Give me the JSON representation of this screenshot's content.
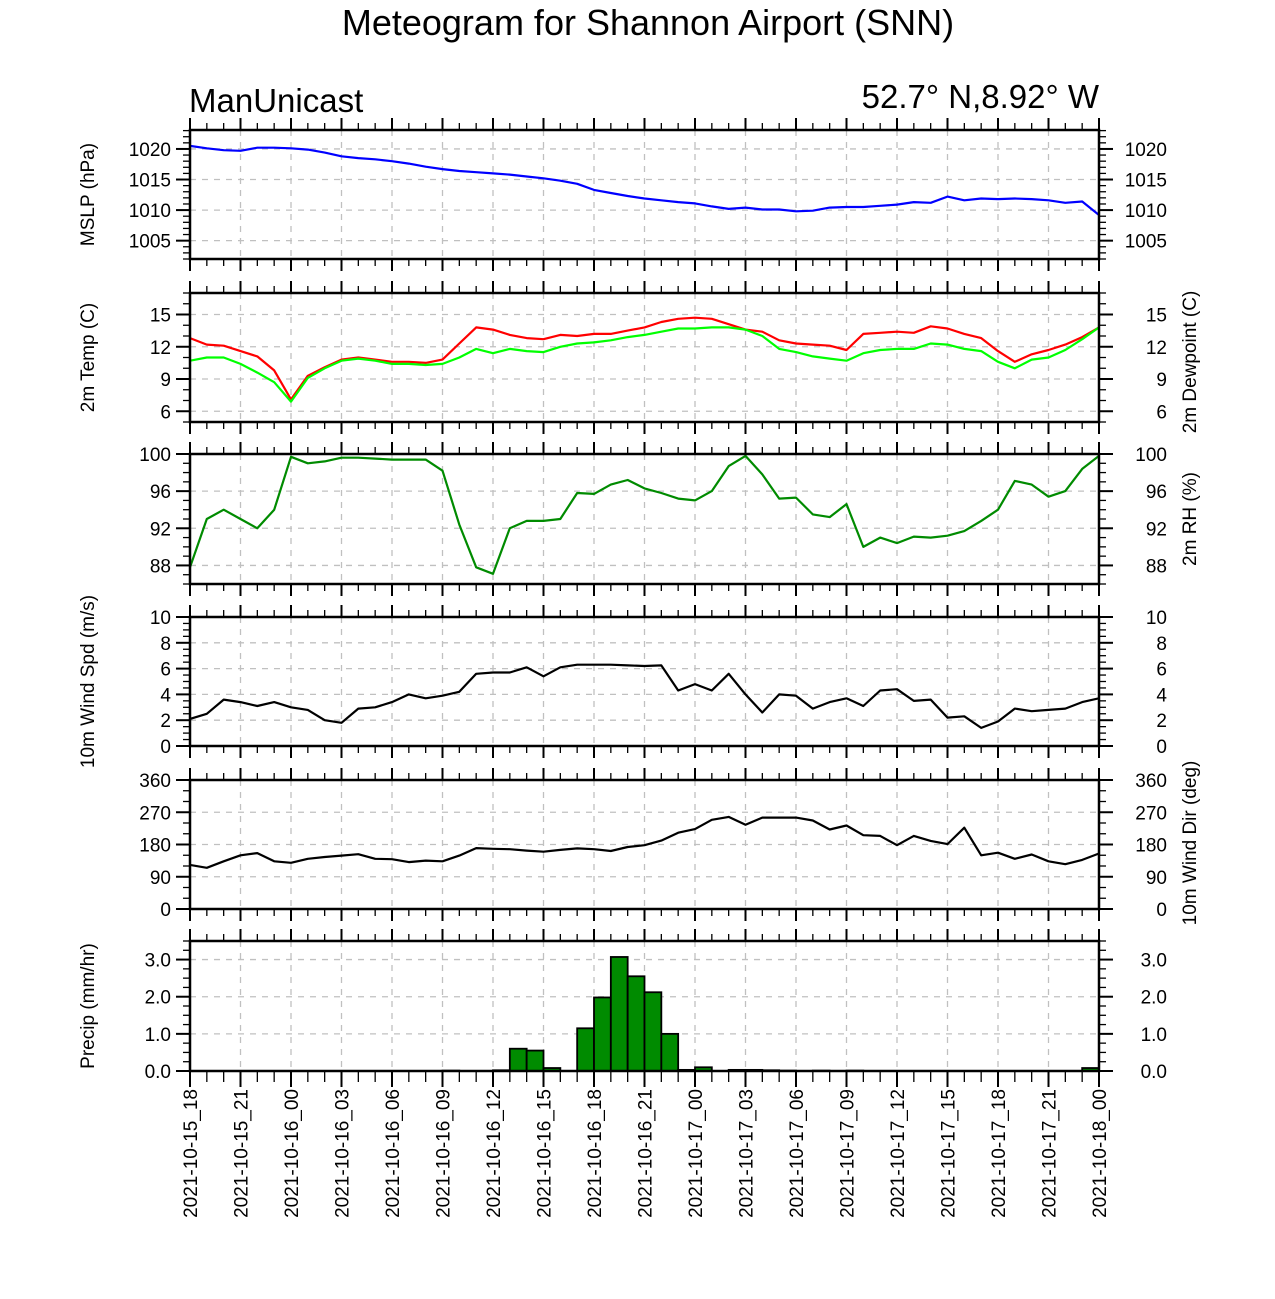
{
  "title": "Meteogram for Shannon Airport (SNN)",
  "left_subtitle": "ManUnicast",
  "right_subtitle": "52.7° N,8.92° W",
  "chart_data": {
    "x_hours_start": "2021-10-15_18",
    "x_step_hours": 1,
    "x_tick_labels": [
      "2021-10-15_18",
      "2021-10-15_21",
      "2021-10-16_00",
      "2021-10-16_03",
      "2021-10-16_06",
      "2021-10-16_09",
      "2021-10-16_12",
      "2021-10-16_15",
      "2021-10-16_18",
      "2021-10-16_21",
      "2021-10-17_00",
      "2021-10-17_03",
      "2021-10-17_06",
      "2021-10-17_09",
      "2021-10-17_12",
      "2021-10-17_15",
      "2021-10-17_18",
      "2021-10-17_21",
      "2021-10-18_00"
    ],
    "panels": [
      {
        "id": "mslp",
        "type": "line",
        "ylabel_left": "MSLP (hPa)",
        "ylabel_right": "",
        "ylim": [
          1002,
          1023.1
        ],
        "yticks": [
          1005,
          1010,
          1015,
          1020
        ],
        "ytick_labels": [
          "1005",
          "1010",
          "1015",
          "1020"
        ],
        "minor_step": 1,
        "right_tick_labels": true,
        "series": [
          {
            "name": "MSLP",
            "color": "#0000ff",
            "values": [
              1020.5,
              1020.1,
              1019.8,
              1019.7,
              1020.2,
              1020.2,
              1020.1,
              1019.9,
              1019.4,
              1018.8,
              1018.5,
              1018.3,
              1018.0,
              1017.6,
              1017.1,
              1016.7,
              1016.4,
              1016.2,
              1016.0,
              1015.8,
              1015.5,
              1015.2,
              1014.8,
              1014.3,
              1013.3,
              1012.8,
              1012.3,
              1011.9,
              1011.6,
              1011.3,
              1011.1,
              1010.6,
              1010.2,
              1010.4,
              1010.1,
              1010.1,
              1009.8,
              1009.9,
              1010.4,
              1010.5,
              1010.5,
              1010.7,
              1010.9,
              1011.3,
              1011.2,
              1012.2,
              1011.6,
              1011.9,
              1011.8,
              1011.9,
              1011.8,
              1011.6,
              1011.2,
              1011.4,
              1009.2
            ]
          }
        ]
      },
      {
        "id": "temp",
        "type": "line",
        "ylabel_left": "2m Temp (C)",
        "ylabel_right": "2m Dewpoint (C)",
        "ylim": [
          5,
          17
        ],
        "yticks": [
          6,
          9,
          12,
          15
        ],
        "ytick_labels": [
          "6",
          "9",
          "12",
          "15"
        ],
        "minor_step": 1,
        "right_tick_labels": true,
        "series": [
          {
            "name": "2m Temp",
            "color": "#ff0000",
            "values": [
              12.8,
              12.2,
              12.1,
              11.6,
              11.1,
              9.8,
              7.1,
              9.3,
              10.1,
              10.8,
              11.0,
              10.8,
              10.6,
              10.6,
              10.5,
              10.8,
              12.3,
              13.8,
              13.6,
              13.1,
              12.8,
              12.7,
              13.1,
              13.0,
              13.2,
              13.2,
              13.5,
              13.8,
              14.3,
              14.6,
              14.7,
              14.6,
              14.1,
              13.6,
              13.4,
              12.6,
              12.3,
              12.2,
              12.1,
              11.7,
              13.2,
              13.3,
              13.4,
              13.3,
              13.9,
              13.7,
              13.2,
              12.8,
              11.6,
              10.6,
              11.3,
              11.7,
              12.2,
              12.9,
              13.8
            ]
          },
          {
            "name": "2m Dewpoint",
            "color": "#00ff00",
            "values": [
              10.7,
              11.0,
              11.0,
              10.4,
              9.6,
              8.7,
              6.9,
              9.1,
              10.0,
              10.7,
              10.9,
              10.7,
              10.4,
              10.4,
              10.3,
              10.4,
              11.0,
              11.8,
              11.4,
              11.8,
              11.6,
              11.5,
              12.0,
              12.3,
              12.4,
              12.6,
              12.9,
              13.1,
              13.4,
              13.7,
              13.7,
              13.8,
              13.8,
              13.6,
              13.0,
              11.8,
              11.5,
              11.1,
              10.9,
              10.7,
              11.4,
              11.7,
              11.8,
              11.8,
              12.3,
              12.2,
              11.8,
              11.6,
              10.6,
              10.0,
              10.8,
              11.0,
              11.7,
              12.7,
              13.8
            ]
          }
        ]
      },
      {
        "id": "rh",
        "type": "line",
        "ylabel_left": "",
        "ylabel_right": "2m RH (%)",
        "ylim": [
          86,
          100
        ],
        "yticks": [
          88,
          92,
          96,
          100
        ],
        "ytick_labels": [
          "88",
          "92",
          "96",
          "100"
        ],
        "minor_step": 1,
        "right_tick_labels": true,
        "series": [
          {
            "name": "2m RH",
            "color": "#008b00",
            "values": [
              87.8,
              93.0,
              94.0,
              93.0,
              92.0,
              94.0,
              99.7,
              99.0,
              99.2,
              99.6,
              99.6,
              99.5,
              99.4,
              99.4,
              99.4,
              98.2,
              92.4,
              87.8,
              87.1,
              92.0,
              92.8,
              92.8,
              93.0,
              95.8,
              95.7,
              96.7,
              97.2,
              96.3,
              95.8,
              95.2,
              95.0,
              96.0,
              98.7,
              99.8,
              97.8,
              95.2,
              95.3,
              93.5,
              93.2,
              94.6,
              90.0,
              91.0,
              90.4,
              91.1,
              91.0,
              91.2,
              91.7,
              92.8,
              94.0,
              97.1,
              96.7,
              95.4,
              96.0,
              98.4,
              99.8
            ]
          }
        ]
      },
      {
        "id": "wspd",
        "type": "line",
        "ylabel_left": "10m Wind Spd (m/s)",
        "ylabel_right": "",
        "ylim": [
          0,
          10
        ],
        "yticks": [
          0,
          2,
          4,
          6,
          8,
          10
        ],
        "ytick_labels": [
          "0",
          "2",
          "4",
          "6",
          "8",
          "10"
        ],
        "minor_step": 0.5,
        "right_tick_labels": true,
        "series": [
          {
            "name": "10m Wind Spd",
            "color": "#000000",
            "values": [
              2.1,
              2.5,
              3.6,
              3.4,
              3.1,
              3.4,
              3.0,
              2.8,
              2.0,
              1.8,
              2.9,
              3.0,
              3.4,
              4.0,
              3.7,
              3.9,
              4.2,
              5.6,
              5.7,
              5.7,
              6.1,
              5.4,
              6.1,
              6.3,
              6.3,
              6.3,
              6.25,
              6.2,
              6.25,
              4.3,
              4.8,
              4.3,
              5.6,
              4.0,
              2.6,
              4.0,
              3.9,
              2.9,
              3.4,
              3.7,
              3.1,
              4.3,
              4.4,
              3.5,
              3.6,
              2.2,
              2.3,
              1.4,
              1.9,
              2.9,
              2.7,
              2.8,
              2.9,
              3.4,
              3.7
            ]
          }
        ]
      },
      {
        "id": "wdir",
        "type": "line",
        "ylabel_left": "",
        "ylabel_right": "10m Wind Dir (deg)",
        "ylim": [
          0,
          360
        ],
        "yticks": [
          0,
          90,
          180,
          270,
          360
        ],
        "ytick_labels": [
          "0",
          "90",
          "180",
          "270",
          "360"
        ],
        "minor_step": 30,
        "right_tick_labels": true,
        "series": [
          {
            "name": "10m Wind Dir",
            "color": "#000000",
            "values": [
              123,
              115,
              133,
              150,
              156,
              133,
              129,
              140,
              145,
              149,
              153,
              140,
              139,
              131,
              135,
              133,
              149,
              170,
              168,
              167,
              163,
              160,
              165,
              169,
              167,
              162,
              173,
              178,
              191,
              213,
              223,
              249,
              257,
              235,
              255,
              255,
              255,
              247,
              222,
              233,
              206,
              204,
              178,
              204,
              190,
              181,
              227,
              150,
              157,
              140,
              152,
              133,
              125,
              137,
              155
            ]
          }
        ]
      },
      {
        "id": "precip",
        "type": "bar",
        "ylabel_left": "Precip (mm/hr)",
        "ylabel_right": "",
        "ylim": [
          0,
          3.5
        ],
        "yticks": [
          0.0,
          1.0,
          2.0,
          3.0
        ],
        "ytick_labels": [
          "0.0",
          "1.0",
          "2.0",
          "3.0"
        ],
        "minor_step": 0.25,
        "right_tick_labels": true,
        "bar_color": "#008b00",
        "values": [
          0,
          0,
          0,
          0,
          0,
          0,
          0,
          0,
          0,
          0,
          0,
          0,
          0,
          0,
          0,
          0.01,
          0,
          0,
          0.02,
          0.6,
          0.55,
          0.08,
          0,
          1.15,
          1.98,
          3.07,
          2.55,
          2.12,
          1.0,
          0.03,
          0.1,
          0,
          0.03,
          0.03,
          0.02,
          0.01,
          0,
          0.01,
          0,
          0.01,
          0,
          0,
          0,
          0,
          0,
          0,
          0,
          0,
          0,
          0,
          0,
          0,
          0,
          0.08,
          0
        ]
      }
    ]
  }
}
